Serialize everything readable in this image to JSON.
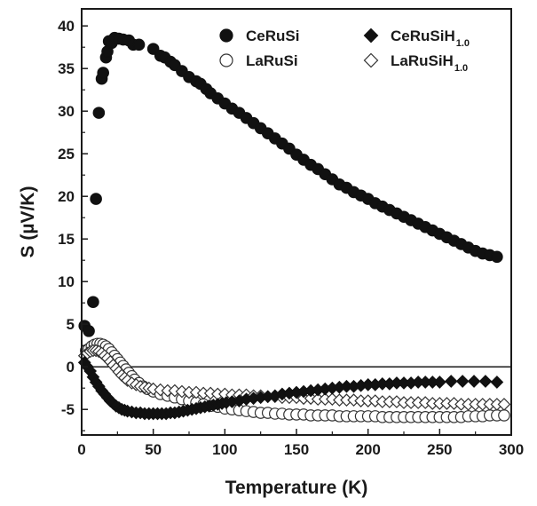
{
  "chart_data": {
    "type": "scatter",
    "xlabel": "Temperature (K)",
    "ylabel": "S (µV/K)",
    "xlim": [
      0,
      300
    ],
    "ylim": [
      -8,
      42
    ],
    "xticks": [
      "0",
      "50",
      "100",
      "150",
      "200",
      "250",
      "300"
    ],
    "yticks": [
      "-5",
      "0",
      "5",
      "10",
      "15",
      "20",
      "25",
      "30",
      "35",
      "40"
    ],
    "reference_line_y": 0,
    "legend_position": "top-right",
    "series": [
      {
        "name": "CeRuSi",
        "marker": "filled-circle",
        "points": [
          [
            2,
            4.8
          ],
          [
            5,
            4.2
          ],
          [
            8,
            7.6
          ],
          [
            10,
            19.7
          ],
          [
            12,
            29.8
          ],
          [
            14,
            33.8
          ],
          [
            15,
            34.5
          ],
          [
            17,
            36.3
          ],
          [
            18,
            37.0
          ],
          [
            19,
            38.2
          ],
          [
            21,
            38.0
          ],
          [
            23,
            38.6
          ],
          [
            26,
            38.5
          ],
          [
            29,
            38.4
          ],
          [
            33,
            38.3
          ],
          [
            36,
            37.8
          ],
          [
            40,
            37.8
          ],
          [
            50,
            37.3
          ],
          [
            55,
            36.5
          ],
          [
            58,
            36.3
          ],
          [
            62,
            35.8
          ],
          [
            65,
            35.4
          ],
          [
            70,
            34.7
          ],
          [
            75,
            34.0
          ],
          [
            80,
            33.5
          ],
          [
            83,
            33.2
          ],
          [
            87,
            32.6
          ],
          [
            90,
            32.1
          ],
          [
            95,
            31.5
          ],
          [
            100,
            30.9
          ],
          [
            105,
            30.3
          ],
          [
            110,
            29.8
          ],
          [
            115,
            29.2
          ],
          [
            120,
            28.6
          ],
          [
            125,
            28.0
          ],
          [
            130,
            27.4
          ],
          [
            135,
            26.8
          ],
          [
            140,
            26.2
          ],
          [
            145,
            25.6
          ],
          [
            150,
            24.9
          ],
          [
            155,
            24.3
          ],
          [
            160,
            23.7
          ],
          [
            165,
            23.2
          ],
          [
            170,
            22.6
          ],
          [
            175,
            22.0
          ],
          [
            180,
            21.4
          ],
          [
            185,
            21.0
          ],
          [
            190,
            20.5
          ],
          [
            195,
            20.1
          ],
          [
            200,
            19.7
          ],
          [
            205,
            19.2
          ],
          [
            210,
            18.8
          ],
          [
            215,
            18.4
          ],
          [
            220,
            18.0
          ],
          [
            225,
            17.6
          ],
          [
            230,
            17.2
          ],
          [
            235,
            16.8
          ],
          [
            240,
            16.4
          ],
          [
            245,
            16.0
          ],
          [
            250,
            15.6
          ],
          [
            255,
            15.2
          ],
          [
            260,
            14.8
          ],
          [
            265,
            14.4
          ],
          [
            270,
            14.0
          ],
          [
            275,
            13.6
          ],
          [
            280,
            13.3
          ],
          [
            285,
            13.1
          ],
          [
            290,
            12.9
          ]
        ]
      },
      {
        "name": "CeRuSiH",
        "name_subscript": "1.0",
        "marker": "filled-diamond",
        "points": [
          [
            2,
            0.5
          ],
          [
            4,
            0.0
          ],
          [
            6,
            -0.5
          ],
          [
            8,
            -1.2
          ],
          [
            10,
            -1.8
          ],
          [
            12,
            -2.3
          ],
          [
            14,
            -2.8
          ],
          [
            16,
            -3.2
          ],
          [
            18,
            -3.6
          ],
          [
            20,
            -4.0
          ],
          [
            22,
            -4.3
          ],
          [
            24,
            -4.6
          ],
          [
            26,
            -4.8
          ],
          [
            28,
            -5.0
          ],
          [
            30,
            -5.1
          ],
          [
            32,
            -5.2
          ],
          [
            35,
            -5.3
          ],
          [
            38,
            -5.4
          ],
          [
            41,
            -5.4
          ],
          [
            44,
            -5.5
          ],
          [
            47,
            -5.5
          ],
          [
            50,
            -5.5
          ],
          [
            53,
            -5.5
          ],
          [
            56,
            -5.5
          ],
          [
            59,
            -5.5
          ],
          [
            62,
            -5.4
          ],
          [
            65,
            -5.4
          ],
          [
            68,
            -5.3
          ],
          [
            71,
            -5.2
          ],
          [
            74,
            -5.1
          ],
          [
            77,
            -5.0
          ],
          [
            80,
            -4.9
          ],
          [
            83,
            -4.8
          ],
          [
            86,
            -4.7
          ],
          [
            89,
            -4.6
          ],
          [
            92,
            -4.5
          ],
          [
            95,
            -4.4
          ],
          [
            98,
            -4.3
          ],
          [
            101,
            -4.2
          ],
          [
            105,
            -4.1
          ],
          [
            110,
            -4.0
          ],
          [
            115,
            -3.8
          ],
          [
            120,
            -3.7
          ],
          [
            125,
            -3.6
          ],
          [
            130,
            -3.5
          ],
          [
            135,
            -3.4
          ],
          [
            140,
            -3.2
          ],
          [
            145,
            -3.1
          ],
          [
            150,
            -3.0
          ],
          [
            155,
            -2.9
          ],
          [
            160,
            -2.8
          ],
          [
            165,
            -2.7
          ],
          [
            170,
            -2.6
          ],
          [
            175,
            -2.5
          ],
          [
            180,
            -2.4
          ],
          [
            185,
            -2.3
          ],
          [
            190,
            -2.3
          ],
          [
            195,
            -2.2
          ],
          [
            200,
            -2.1
          ],
          [
            205,
            -2.1
          ],
          [
            210,
            -2.0
          ],
          [
            215,
            -2.0
          ],
          [
            220,
            -1.9
          ],
          [
            225,
            -1.9
          ],
          [
            230,
            -1.9
          ],
          [
            235,
            -1.8
          ],
          [
            240,
            -1.8
          ],
          [
            245,
            -1.8
          ],
          [
            250,
            -1.8
          ],
          [
            258,
            -1.7
          ],
          [
            266,
            -1.7
          ],
          [
            274,
            -1.7
          ],
          [
            282,
            -1.7
          ],
          [
            290,
            -1.8
          ]
        ]
      },
      {
        "name": "LaRuSi",
        "marker": "open-circle",
        "points": [
          [
            3,
            1.9
          ],
          [
            5,
            2.1
          ],
          [
            7,
            2.4
          ],
          [
            9,
            2.6
          ],
          [
            11,
            2.7
          ],
          [
            13,
            2.7
          ],
          [
            15,
            2.6
          ],
          [
            17,
            2.4
          ],
          [
            19,
            2.1
          ],
          [
            21,
            1.7
          ],
          [
            23,
            1.3
          ],
          [
            25,
            0.9
          ],
          [
            27,
            0.5
          ],
          [
            29,
            0.1
          ],
          [
            31,
            -0.3
          ],
          [
            33,
            -0.7
          ],
          [
            35,
            -1.1
          ],
          [
            37,
            -1.5
          ],
          [
            40,
            -1.9
          ],
          [
            43,
            -2.3
          ],
          [
            46,
            -2.6
          ],
          [
            50,
            -2.9
          ],
          [
            55,
            -3.2
          ],
          [
            60,
            -3.4
          ],
          [
            65,
            -3.6
          ],
          [
            70,
            -3.8
          ],
          [
            75,
            -4.0
          ],
          [
            80,
            -4.2
          ],
          [
            85,
            -4.4
          ],
          [
            90,
            -4.6
          ],
          [
            95,
            -4.7
          ],
          [
            100,
            -4.9
          ],
          [
            105,
            -5.0
          ],
          [
            110,
            -5.1
          ],
          [
            115,
            -5.2
          ],
          [
            120,
            -5.3
          ],
          [
            125,
            -5.4
          ],
          [
            130,
            -5.4
          ],
          [
            135,
            -5.5
          ],
          [
            140,
            -5.5
          ],
          [
            145,
            -5.6
          ],
          [
            150,
            -5.6
          ],
          [
            155,
            -5.6
          ],
          [
            160,
            -5.7
          ],
          [
            165,
            -5.7
          ],
          [
            170,
            -5.7
          ],
          [
            175,
            -5.7
          ],
          [
            180,
            -5.8
          ],
          [
            185,
            -5.8
          ],
          [
            190,
            -5.8
          ],
          [
            195,
            -5.8
          ],
          [
            200,
            -5.8
          ],
          [
            205,
            -5.8
          ],
          [
            210,
            -5.9
          ],
          [
            215,
            -5.9
          ],
          [
            220,
            -5.9
          ],
          [
            225,
            -5.9
          ],
          [
            230,
            -5.9
          ],
          [
            235,
            -5.9
          ],
          [
            240,
            -5.9
          ],
          [
            245,
            -5.9
          ],
          [
            250,
            -5.9
          ],
          [
            255,
            -5.9
          ],
          [
            260,
            -5.9
          ],
          [
            265,
            -5.9
          ],
          [
            270,
            -5.8
          ],
          [
            275,
            -5.8
          ],
          [
            280,
            -5.8
          ],
          [
            285,
            -5.7
          ],
          [
            290,
            -5.7
          ],
          [
            295,
            -5.7
          ]
        ]
      },
      {
        "name": "LaRuSiH",
        "name_subscript": "1.0",
        "marker": "open-diamond",
        "points": [
          [
            2,
            1.3
          ],
          [
            4,
            1.6
          ],
          [
            6,
            1.8
          ],
          [
            8,
            1.9
          ],
          [
            10,
            1.9
          ],
          [
            12,
            1.8
          ],
          [
            14,
            1.6
          ],
          [
            16,
            1.3
          ],
          [
            18,
            1.0
          ],
          [
            20,
            0.6
          ],
          [
            22,
            0.2
          ],
          [
            24,
            -0.2
          ],
          [
            26,
            -0.6
          ],
          [
            28,
            -1.0
          ],
          [
            30,
            -1.3
          ],
          [
            32,
            -1.6
          ],
          [
            35,
            -1.9
          ],
          [
            38,
            -2.1
          ],
          [
            41,
            -2.3
          ],
          [
            44,
            -2.4
          ],
          [
            47,
            -2.5
          ],
          [
            50,
            -2.6
          ],
          [
            55,
            -2.7
          ],
          [
            60,
            -2.8
          ],
          [
            65,
            -2.8
          ],
          [
            70,
            -2.9
          ],
          [
            75,
            -3.0
          ],
          [
            80,
            -3.0
          ],
          [
            85,
            -3.1
          ],
          [
            90,
            -3.1
          ],
          [
            95,
            -3.2
          ],
          [
            100,
            -3.2
          ],
          [
            105,
            -3.3
          ],
          [
            110,
            -3.3
          ],
          [
            115,
            -3.3
          ],
          [
            120,
            -3.4
          ],
          [
            125,
            -3.4
          ],
          [
            130,
            -3.5
          ],
          [
            135,
            -3.5
          ],
          [
            140,
            -3.6
          ],
          [
            145,
            -3.6
          ],
          [
            150,
            -3.6
          ],
          [
            155,
            -3.7
          ],
          [
            160,
            -3.7
          ],
          [
            165,
            -3.8
          ],
          [
            170,
            -3.8
          ],
          [
            175,
            -3.8
          ],
          [
            180,
            -3.9
          ],
          [
            185,
            -3.9
          ],
          [
            190,
            -3.9
          ],
          [
            195,
            -4.0
          ],
          [
            200,
            -4.0
          ],
          [
            205,
            -4.0
          ],
          [
            210,
            -4.1
          ],
          [
            215,
            -4.1
          ],
          [
            220,
            -4.1
          ],
          [
            225,
            -4.2
          ],
          [
            230,
            -4.2
          ],
          [
            235,
            -4.2
          ],
          [
            240,
            -4.2
          ],
          [
            245,
            -4.3
          ],
          [
            250,
            -4.3
          ],
          [
            255,
            -4.3
          ],
          [
            260,
            -4.3
          ],
          [
            265,
            -4.4
          ],
          [
            270,
            -4.4
          ],
          [
            275,
            -4.4
          ],
          [
            280,
            -4.4
          ],
          [
            285,
            -4.4
          ],
          [
            290,
            -4.4
          ],
          [
            295,
            -4.4
          ]
        ]
      }
    ]
  }
}
